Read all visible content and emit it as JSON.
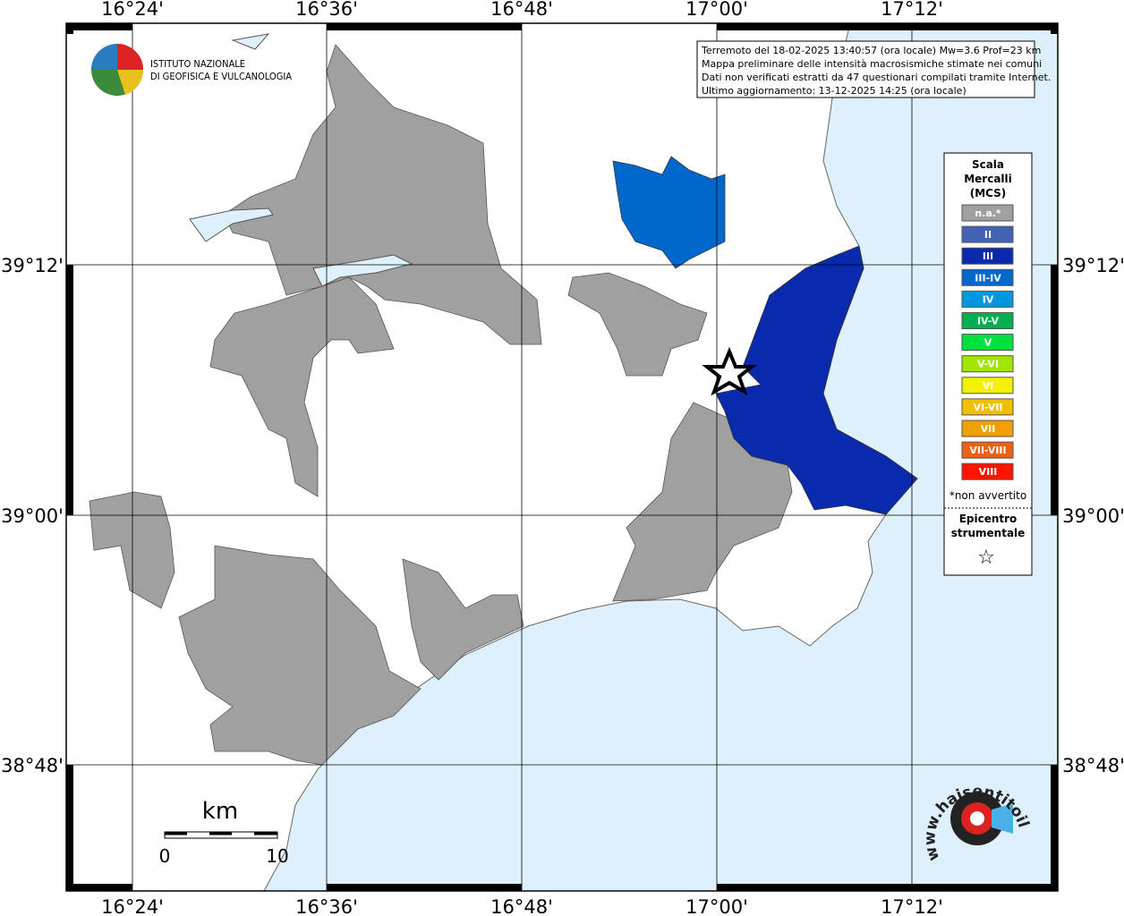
{
  "map": {
    "lon_labels": [
      "16°24'",
      "16°36'",
      "16°48'",
      "17°00'",
      "17°12'"
    ],
    "lat_labels": [
      "39°12'",
      "39°00'",
      "38°48'"
    ],
    "info": [
      "Terremoto del 18-02-2025 13:40:57 (ora locale) Mw=3.6 Prof=23 km",
      "Mappa preliminare delle intensità macrosismiche stimate nei comuni",
      "Dati non verificati estratti da 47 questionari compilati tramite Internet.",
      "Ultimo aggiornamento: 13-12-2025 14:25 (ora locale)"
    ],
    "logo": [
      "ISTITUTO NAZIONALE",
      "DI GEOFISICA E VULCANOLOGIA"
    ],
    "legend": {
      "title": [
        "Scala",
        "Mercalli",
        "(MCS)"
      ],
      "levels": [
        {
          "label": "n.a.*",
          "color": "#a0a0a0"
        },
        {
          "label": "II",
          "color": "#4262b4"
        },
        {
          "label": "III",
          "color": "#0a2aae"
        },
        {
          "label": "III-IV",
          "color": "#0068cc"
        },
        {
          "label": "IV",
          "color": "#0096e0"
        },
        {
          "label": "IV-V",
          "color": "#00b050"
        },
        {
          "label": "V",
          "color": "#00e040"
        },
        {
          "label": "V-VI",
          "color": "#a0e600"
        },
        {
          "label": "VI",
          "color": "#f2f200"
        },
        {
          "label": "VI-VII",
          "color": "#f0c000"
        },
        {
          "label": "VII",
          "color": "#f0a000"
        },
        {
          "label": "VII-VIII",
          "color": "#f06010"
        },
        {
          "label": "VIII",
          "color": "#ff1400"
        }
      ],
      "note": "*non avvertito",
      "epicenter": [
        "Epicentro",
        "strumentale"
      ],
      "star": "☆"
    },
    "scale": {
      "unit": "km",
      "labels": [
        "0",
        "10"
      ]
    },
    "site": "www.haisentitoilterremoto.it"
  }
}
